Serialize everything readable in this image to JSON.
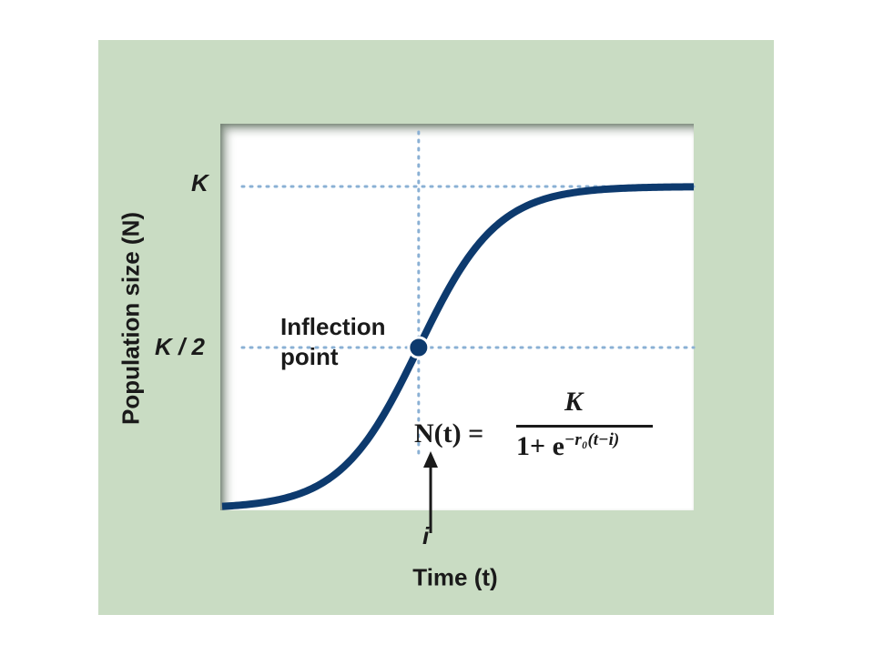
{
  "chart_data": {
    "type": "line",
    "title": "",
    "xlabel": "Time (t)",
    "ylabel": "Population size (N)",
    "x_ticks": [
      "i"
    ],
    "y_ticks": [
      "K",
      "K / 2"
    ],
    "grid": "dotted reference lines at K, K/2 and i",
    "series": [
      {
        "x": [
          -5,
          -4,
          -3,
          -2,
          -1,
          0,
          1,
          2,
          3,
          4,
          5,
          6,
          7
        ],
        "y": [
          0.007,
          0.018,
          0.047,
          0.119,
          0.269,
          0.5,
          0.731,
          0.881,
          0.953,
          0.982,
          0.993,
          0.998,
          0.999
        ]
      }
    ],
    "annotations": {
      "inflection": "Inflection point",
      "formula_lhs": "N(t) =",
      "formula_numerator": "K",
      "formula_denominator": "1+ e",
      "formula_exponent": "−r₀(t−i)"
    },
    "colors": {
      "curve": "#0d3a6e",
      "panel": "#c9dcc3",
      "guides": "#8ab0d4"
    }
  }
}
